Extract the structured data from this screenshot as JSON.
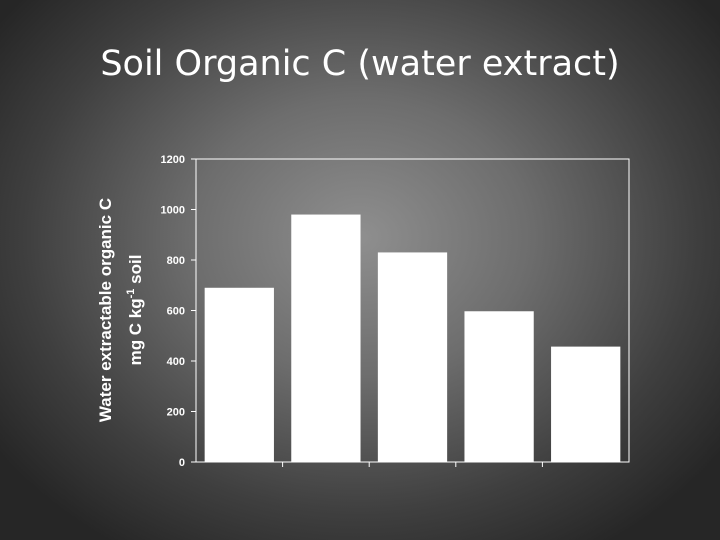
{
  "slide": {
    "title": "Soil Organic C (water extract)"
  },
  "chart_data": {
    "type": "bar",
    "title": "",
    "xlabel": "",
    "ylabel_line1": "Water extractable organic C",
    "ylabel_line2_prefix": "mg C kg",
    "ylabel_line2_sup": "-1",
    "ylabel_line2_suffix": " soil",
    "categories": [
      "",
      "",
      "",
      "",
      ""
    ],
    "values": [
      690,
      980,
      830,
      597,
      457
    ],
    "ylim": [
      0,
      1200
    ],
    "yticks": [
      0,
      200,
      400,
      600,
      800,
      1000,
      1200
    ],
    "grid": false,
    "bar_color": "#ffffff",
    "axis_color": "#ffffff"
  }
}
